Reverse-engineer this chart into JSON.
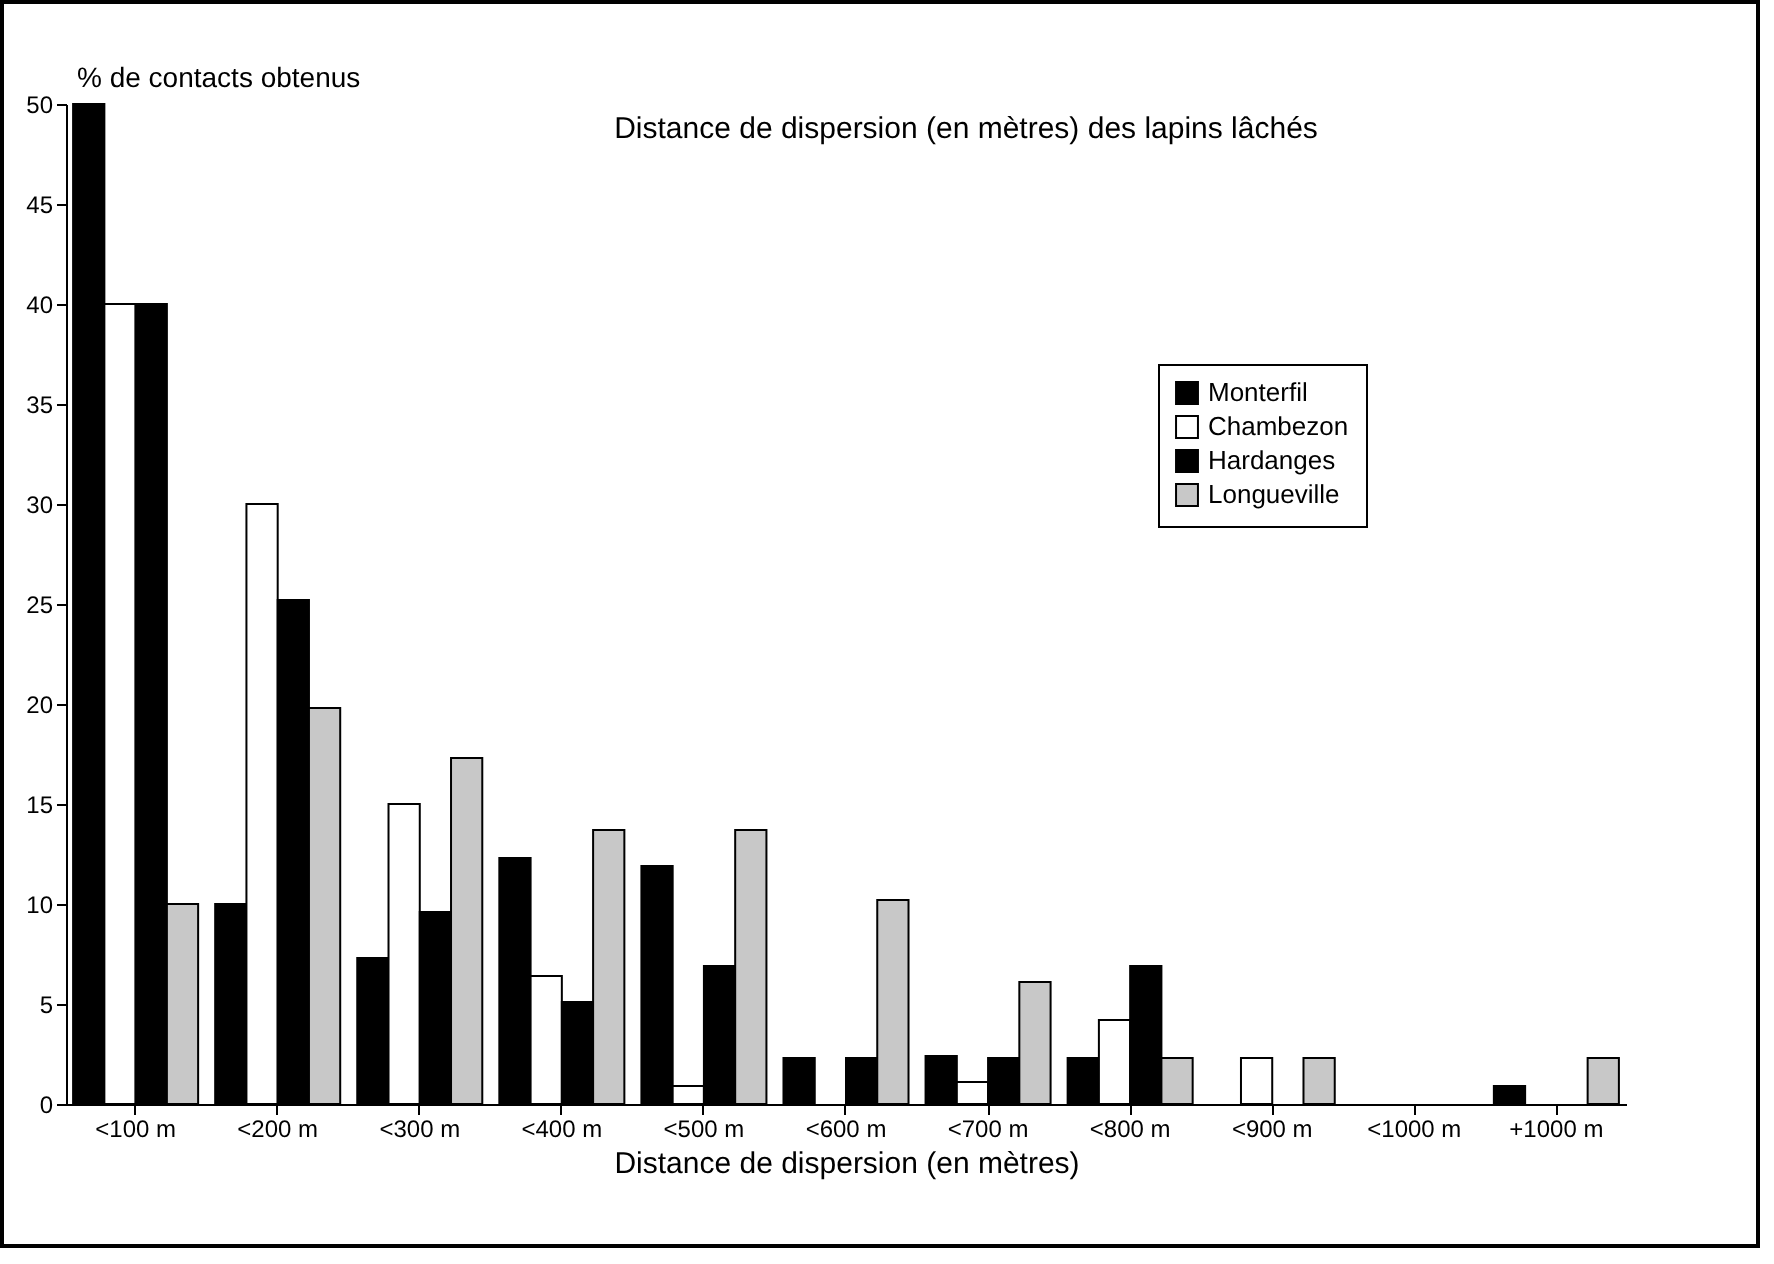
{
  "chart_data": {
    "type": "bar",
    "title": "Distance de dispersion (en mètres) des lapins lâchés",
    "xlabel": "Distance de dispersion (en mètres)",
    "ylabel": "% de contacts obtenus",
    "categories": [
      "<100 m",
      "<200 m",
      "<300 m",
      "<400 m",
      "<500 m",
      "<600 m",
      "<700 m",
      "<800 m",
      "<900 m",
      "<1000 m",
      "+1000 m"
    ],
    "series": [
      {
        "name": "Monterfil",
        "color": "#000000",
        "values": [
          50,
          10,
          7.3,
          12.3,
          11.9,
          2.3,
          2.4,
          2.3,
          null,
          null,
          0.9
        ]
      },
      {
        "name": "Chambezon",
        "color": "#ffffff",
        "values": [
          40,
          30,
          15,
          6.4,
          0.9,
          null,
          1.1,
          4.2,
          2.3,
          null,
          null
        ]
      },
      {
        "name": "Hardanges",
        "color": "#000000",
        "values": [
          40,
          25.2,
          9.6,
          5.1,
          6.9,
          2.3,
          2.3,
          6.9,
          null,
          null,
          null
        ]
      },
      {
        "name": "Longueville",
        "color": "#c8c8c8",
        "values": [
          10,
          19.8,
          17.3,
          13.7,
          13.7,
          10.2,
          6.1,
          2.3,
          2.3,
          null,
          2.3
        ]
      }
    ],
    "ylim": [
      0,
      50
    ],
    "yticks": [
      0,
      5,
      10,
      15,
      20,
      25,
      30,
      35,
      40,
      45,
      50
    ],
    "grid": false,
    "legend": "top right"
  }
}
